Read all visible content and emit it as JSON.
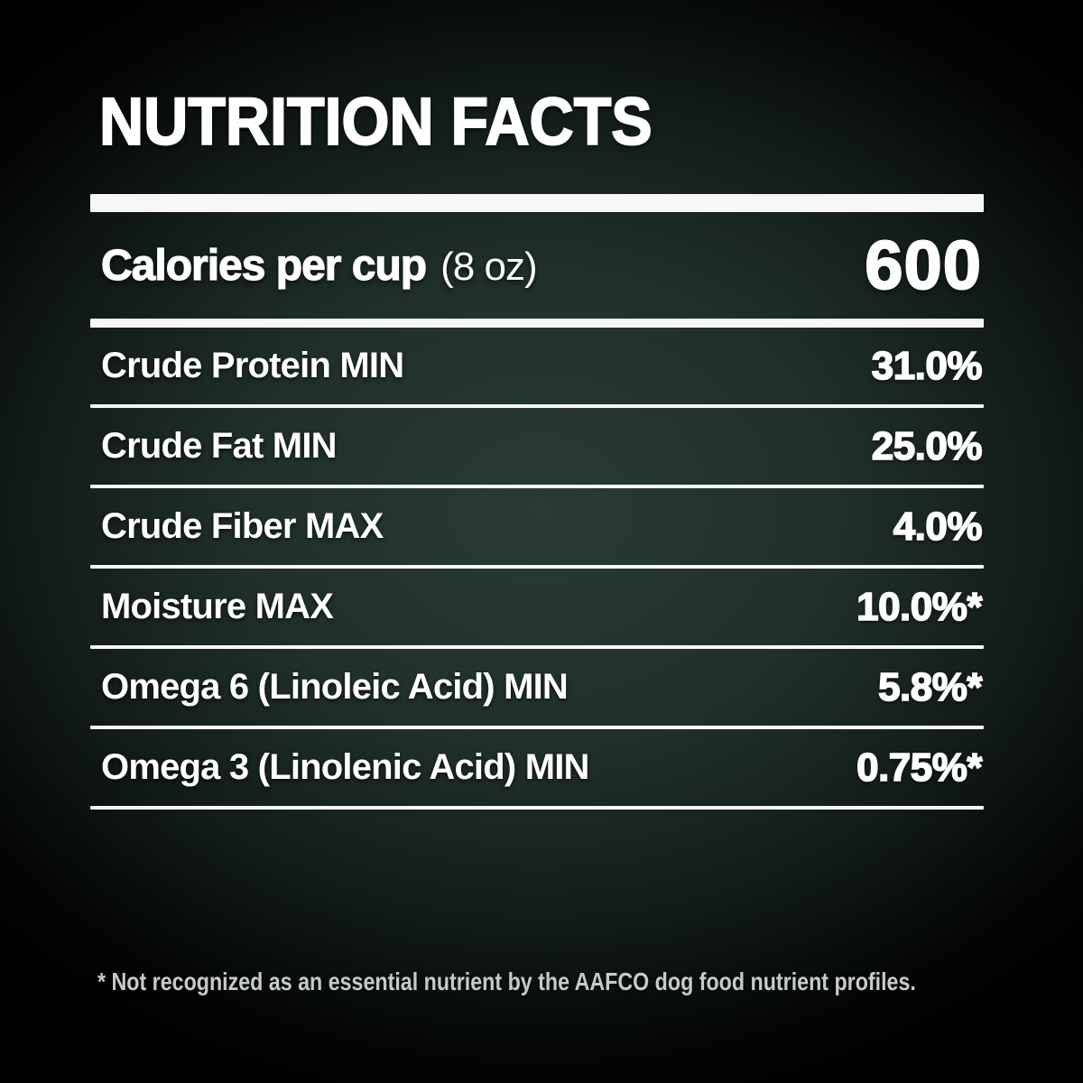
{
  "title": "NUTRITION FACTS",
  "calories": {
    "label": "Calories per cup",
    "unit": "(8 oz)",
    "value": "600"
  },
  "rows": [
    {
      "label": "Crude Protein MIN",
      "value": "31.0%"
    },
    {
      "label": "Crude Fat MIN",
      "value": "25.0%"
    },
    {
      "label": "Crude Fiber MAX",
      "value": "4.0%"
    },
    {
      "label": "Moisture MAX",
      "value": "10.0%*"
    },
    {
      "label": "Omega 6 (Linoleic Acid) MIN",
      "value": "5.8%*"
    },
    {
      "label": "Omega 3 (Linolenic Acid) MIN",
      "value": "0.75%*"
    }
  ],
  "footnote": "* Not recognized as an essential nutrient by the AAFCO dog food nutrient profiles.",
  "colors": {
    "background_center": "#273b34",
    "background_edge": "#000000",
    "text": "#ffffff",
    "rule": "#f7f7f7",
    "footnote_text": "#c7cbc8"
  }
}
